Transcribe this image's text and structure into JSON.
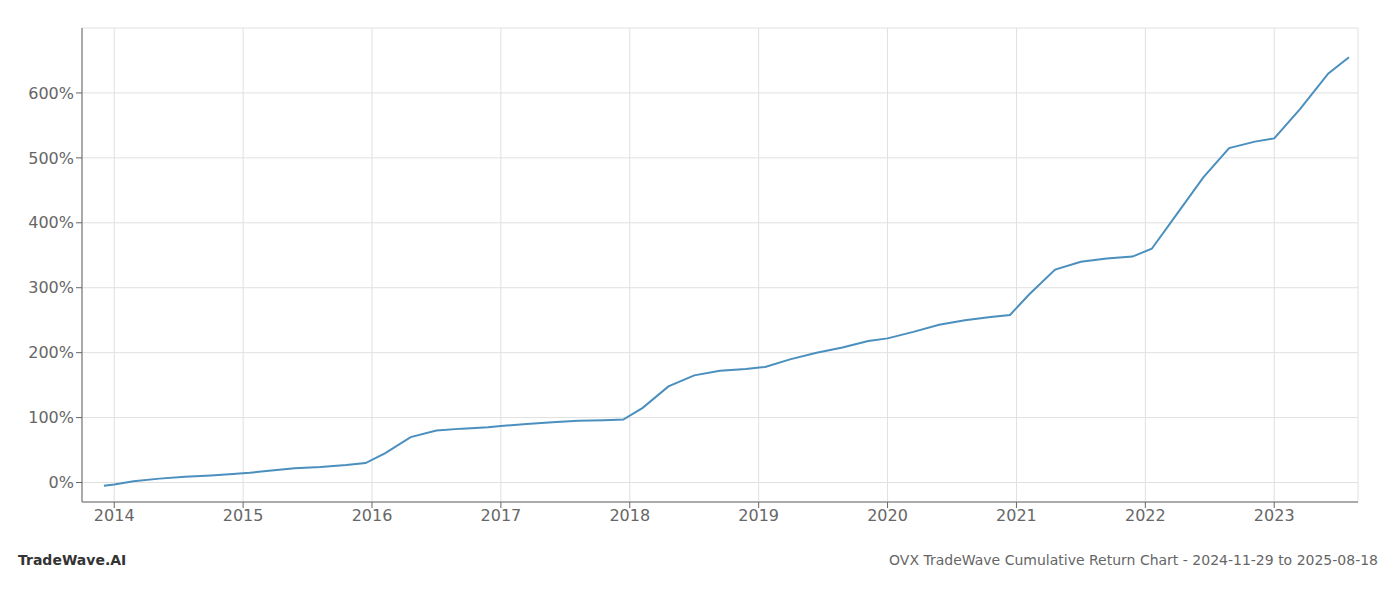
{
  "chart_data": {
    "type": "line",
    "title": "OVX TradeWave Cumulative Return Chart - 2024-11-29 to 2025-08-18",
    "annotations": [
      "TradeWave.AI"
    ],
    "color": "#4a8fbe",
    "grid": true,
    "x": [
      2013.92,
      2014.0,
      2014.15,
      2014.35,
      2014.55,
      2014.75,
      2014.92,
      2015.05,
      2015.2,
      2015.4,
      2015.6,
      2015.8,
      2015.95,
      2016.1,
      2016.3,
      2016.5,
      2016.7,
      2016.9,
      2017.0,
      2017.2,
      2017.4,
      2017.6,
      2017.8,
      2017.95,
      2018.1,
      2018.3,
      2018.5,
      2018.7,
      2018.9,
      2019.05,
      2019.25,
      2019.45,
      2019.65,
      2019.85,
      2020.0,
      2020.2,
      2020.4,
      2020.6,
      2020.8,
      2020.95,
      2021.1,
      2021.3,
      2021.5,
      2021.7,
      2021.9,
      2022.05,
      2022.25,
      2022.45,
      2022.65,
      2022.85,
      2023.0,
      2023.2,
      2023.42,
      2023.58
    ],
    "values": [
      -5,
      -3,
      2,
      6,
      9,
      11,
      13,
      15,
      18,
      22,
      24,
      27,
      30,
      45,
      70,
      80,
      83,
      85,
      87,
      90,
      93,
      95,
      96,
      97,
      115,
      148,
      165,
      172,
      175,
      178,
      190,
      200,
      208,
      218,
      222,
      232,
      243,
      250,
      255,
      258,
      290,
      328,
      340,
      345,
      348,
      360,
      415,
      470,
      515,
      525,
      530,
      575,
      630,
      655
    ],
    "xlim": [
      2013.75,
      2023.65
    ],
    "xticks": [
      2014,
      2015,
      2016,
      2017,
      2018,
      2019,
      2020,
      2021,
      2022,
      2023
    ],
    "ylim": [
      -30,
      700
    ],
    "yticks": [
      {
        "value": 0,
        "label": "0%"
      },
      {
        "value": 100,
        "label": "100%"
      },
      {
        "value": 200,
        "label": "200%"
      },
      {
        "value": 300,
        "label": "300%"
      },
      {
        "value": 400,
        "label": "400%"
      },
      {
        "value": 500,
        "label": "500%"
      },
      {
        "value": 600,
        "label": "600%"
      }
    ]
  }
}
